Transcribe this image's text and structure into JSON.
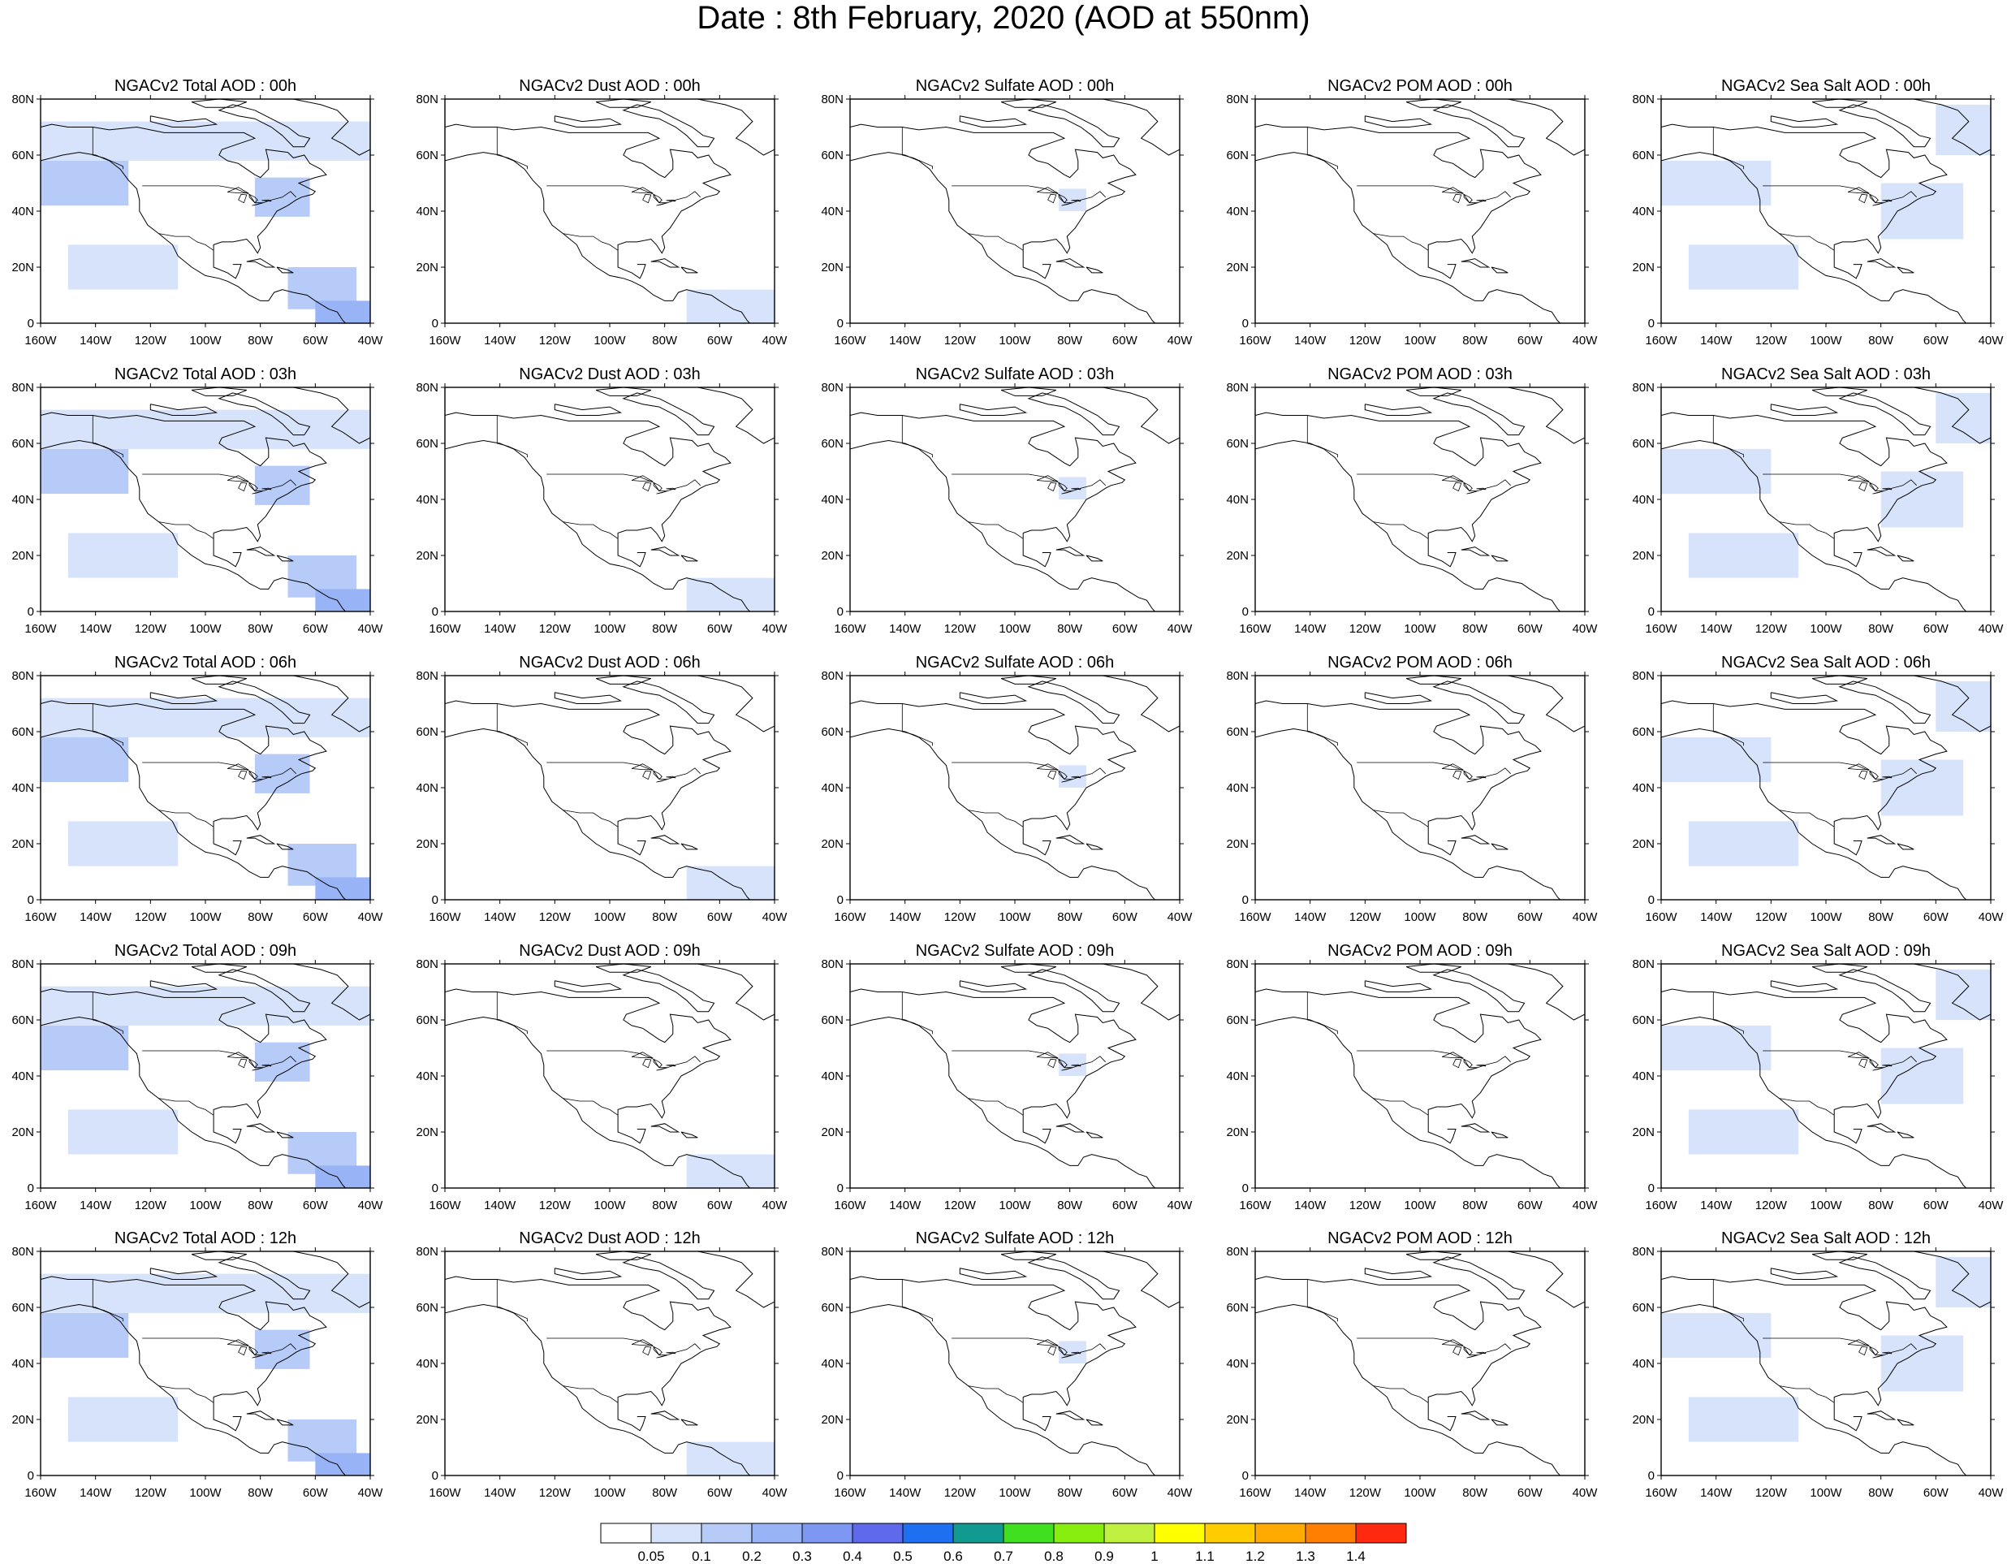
{
  "title": "Date : 8th February, 2020 (AOD at 550nm)",
  "lat_ticks": [
    "80N",
    "60N",
    "40N",
    "20N",
    "0"
  ],
  "lon_ticks": [
    "160W",
    "140W",
    "120W",
    "100W",
    "80W",
    "60W",
    "40W"
  ],
  "panel_titles": [
    [
      "NGACv2 Total AOD : 00h",
      "NGACv2 Dust AOD : 00h",
      "NGACv2 Sulfate AOD : 00h",
      "NGACv2 POM AOD : 00h",
      "NGACv2 Sea Salt AOD : 00h"
    ],
    [
      "NGACv2 Total AOD : 03h",
      "NGACv2 Dust AOD : 03h",
      "NGACv2 Sulfate AOD : 03h",
      "NGACv2 POM AOD : 03h",
      "NGACv2 Sea Salt AOD : 03h"
    ],
    [
      "NGACv2 Total AOD : 06h",
      "NGACv2 Dust AOD : 06h",
      "NGACv2 Sulfate AOD : 06h",
      "NGACv2 POM AOD : 06h",
      "NGACv2 Sea Salt AOD : 06h"
    ],
    [
      "NGACv2 Total AOD : 09h",
      "NGACv2 Dust AOD : 09h",
      "NGACv2 Sulfate AOD : 09h",
      "NGACv2 POM AOD : 09h",
      "NGACv2 Sea Salt  AOD : 09h"
    ],
    [
      "NGACv2 Total AOD  : 12h",
      "NGACv2 Dust AOD : 12h",
      "NGACv2 Sulfate AOD : 12h",
      "NGACv2 POM  AOD : 12h",
      "NGACv2 Sea Salt  AOD : 12h"
    ]
  ],
  "chart_data": {
    "type": "heatmap",
    "map_projection": "cylindrical equidistant",
    "lon_range": [
      -160,
      -40
    ],
    "lat_range": [
      0,
      80
    ],
    "rows": [
      "00h",
      "03h",
      "06h",
      "09h",
      "12h"
    ],
    "columns": [
      "Total",
      "Dust",
      "Sulfate",
      "POM",
      "Sea Salt"
    ],
    "colorbar": {
      "levels": [
        "0.05",
        "0.1",
        "0.2",
        "0.3",
        "0.4",
        "0.5",
        "0.6",
        "0.7",
        "0.8",
        "0.9",
        "1",
        "1.1",
        "1.2",
        "1.3",
        "1.4"
      ],
      "colors": [
        "#ffffff",
        "#d7e3fb",
        "#b7cbf8",
        "#98b3f6",
        "#7e97f3",
        "#5f69ec",
        "#1f70f0",
        "#109a90",
        "#40e020",
        "#88ee10",
        "#c0f040",
        "#ffff00",
        "#ffcc00",
        "#ffaa00",
        "#ff8000",
        "#ff2a10"
      ]
    },
    "fields": {
      "Total": [
        {
          "lon": [
            -160,
            -128
          ],
          "lat": [
            42,
            58
          ],
          "aod_class": "0.1-0.2"
        },
        {
          "lon": [
            -82,
            -62
          ],
          "lat": [
            38,
            52
          ],
          "aod_class": "0.1-0.2"
        },
        {
          "lon": [
            -70,
            -45
          ],
          "lat": [
            5,
            20
          ],
          "aod_class": "0.1-0.2"
        },
        {
          "lon": [
            -60,
            -40
          ],
          "lat": [
            0,
            8
          ],
          "aod_class": "0.2-0.3"
        },
        {
          "lon": [
            -150,
            -110
          ],
          "lat": [
            12,
            28
          ],
          "aod_class": "0.05-0.1"
        },
        {
          "lon": [
            -160,
            -40
          ],
          "lat": [
            58,
            72
          ],
          "aod_class": "0.05-0.1"
        }
      ],
      "Dust": [
        {
          "lon": [
            -72,
            -40
          ],
          "lat": [
            0,
            12
          ],
          "aod_class": "0.05-0.1"
        }
      ],
      "Sulfate": [
        {
          "lon": [
            -84,
            -74
          ],
          "lat": [
            40,
            48
          ],
          "aod_class": "0.05-0.1"
        }
      ],
      "POM": [],
      "Sea Salt": [
        {
          "lon": [
            -160,
            -120
          ],
          "lat": [
            42,
            58
          ],
          "aod_class": "0.05-0.1"
        },
        {
          "lon": [
            -80,
            -50
          ],
          "lat": [
            30,
            50
          ],
          "aod_class": "0.05-0.1"
        },
        {
          "lon": [
            -150,
            -110
          ],
          "lat": [
            12,
            28
          ],
          "aod_class": "0.05-0.1"
        },
        {
          "lon": [
            -60,
            -40
          ],
          "lat": [
            60,
            78
          ],
          "aod_class": "0.05-0.1"
        }
      ]
    }
  }
}
